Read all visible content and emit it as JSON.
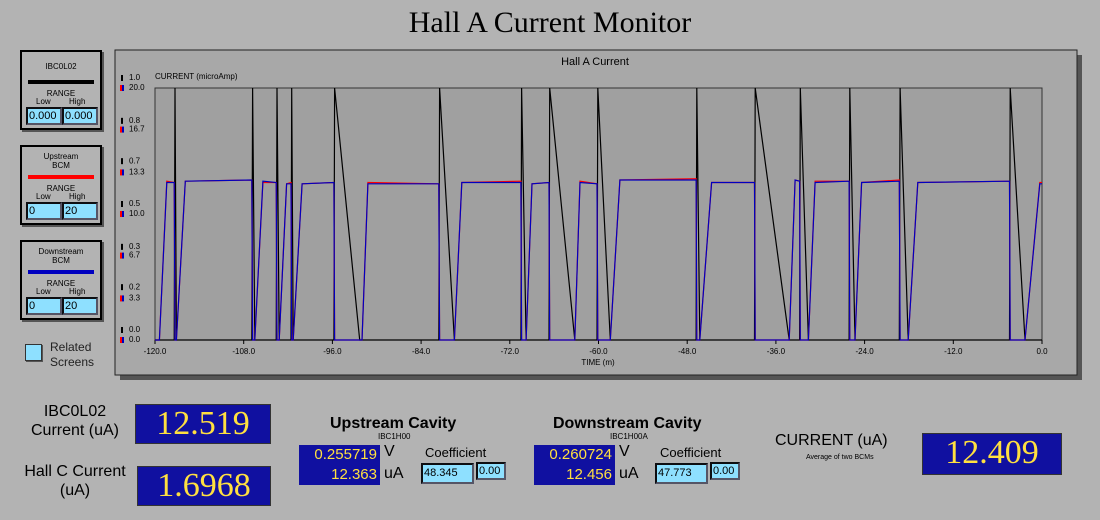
{
  "header": {
    "title": "Hall A Current Monitor"
  },
  "chart_data": {
    "type": "line",
    "title": "Hall A Current",
    "y_label": "CURRENT (microAmp)",
    "x_label": "TIME (m)",
    "x": [
      -120,
      -119.4,
      -118.4,
      -117.4,
      -117.3,
      -117.1,
      -115.9,
      -106.9,
      -106.8,
      -106.5,
      -105.4,
      -103.6,
      -103.5,
      -103.2,
      -102.2,
      -101.6,
      -101.5,
      -101.3,
      -100.1,
      -95.8,
      -95.7,
      -92.3,
      -92.0,
      -91.2,
      -81.6,
      -81.5,
      -79.5,
      -78.5,
      -70.5,
      -70.4,
      -69.8,
      -69.0,
      -66.7,
      -66.6,
      -63.2,
      -62.5,
      -60.2,
      -60.1,
      -58.4,
      -57.1,
      -46.8,
      -46.7,
      -46.3,
      -44.7,
      -38.9,
      -38.8,
      -34.2,
      -33.4,
      -32.8,
      -32.7,
      -31.6,
      -30.7,
      -26.1,
      -26.0,
      -25.3,
      -24.4,
      -19.3,
      -19.2,
      -18.1,
      -16.8,
      -4.4,
      -4.3,
      -2.3,
      -0.3,
      0
    ],
    "series": [
      {
        "name": "IBC0L02",
        "color": "#000000",
        "axis": "y2",
        "values": [
          0,
          0,
          0,
          0,
          1,
          0,
          0,
          0,
          1,
          0,
          0,
          0,
          1,
          0,
          0,
          0,
          1,
          0,
          0,
          0,
          1,
          0,
          0,
          0,
          0,
          1,
          0,
          0,
          0,
          1,
          0,
          0,
          0,
          1,
          0,
          0,
          0,
          1,
          0,
          0,
          0,
          1,
          0,
          0,
          0,
          1,
          0,
          0,
          0,
          1,
          0,
          0,
          0,
          1,
          0,
          0,
          0,
          1,
          0,
          0,
          0,
          1,
          0,
          0,
          0
        ]
      },
      {
        "name": "Upstream BCM",
        "color": "#ff0000",
        "values": [
          0,
          0,
          12.6,
          12.5,
          0,
          0,
          12.6,
          12.7,
          0,
          0,
          12.5,
          12.5,
          0,
          0,
          12.4,
          12.5,
          0,
          0,
          12.4,
          12.5,
          0,
          0,
          0,
          12.5,
          12.4,
          0,
          0,
          12.5,
          12.6,
          0,
          0,
          12.4,
          12.5,
          0,
          0,
          12.6,
          12.4,
          0,
          0,
          12.7,
          12.8,
          0,
          0,
          12.5,
          12.5,
          0,
          0,
          12.7,
          12.6,
          0,
          0,
          12.6,
          12.6,
          0,
          0,
          12.5,
          12.7,
          0,
          0,
          12.5,
          12.6,
          0,
          0,
          12.5,
          12.5
        ]
      },
      {
        "name": "Downstream BCM",
        "color": "#0000c0",
        "values": [
          0,
          0,
          12.5,
          12.5,
          0,
          0,
          12.6,
          12.7,
          0,
          0,
          12.6,
          12.5,
          0,
          0,
          12.4,
          12.4,
          0,
          0,
          12.4,
          12.5,
          0,
          0,
          0,
          12.4,
          12.4,
          0,
          0,
          12.5,
          12.5,
          0,
          0,
          12.4,
          12.5,
          0,
          0,
          12.5,
          12.4,
          0,
          0,
          12.7,
          12.7,
          0,
          0,
          12.5,
          12.5,
          0,
          0,
          12.7,
          12.6,
          0,
          0,
          12.5,
          12.6,
          0,
          0,
          12.5,
          12.6,
          0,
          0,
          12.5,
          12.6,
          0,
          0,
          12.4,
          12.4
        ]
      }
    ],
    "xlim": [
      -120,
      0
    ],
    "xticks": [
      {
        "value": -120,
        "label": "-120.0"
      },
      {
        "value": -108,
        "label": "-108.0"
      },
      {
        "value": -96,
        "label": "-96.0"
      },
      {
        "value": -84,
        "label": "-84.0"
      },
      {
        "value": -72,
        "label": "-72.0"
      },
      {
        "value": -60,
        "label": "-60.0"
      },
      {
        "value": -48,
        "label": "-48.0"
      },
      {
        "value": -36,
        "label": "-36.0"
      },
      {
        "value": -24,
        "label": "-24.0"
      },
      {
        "value": -12,
        "label": "-12.0"
      },
      {
        "value": 0,
        "label": "0.0"
      }
    ],
    "ylim": [
      0,
      20
    ],
    "yticks": [
      {
        "value": 0,
        "label": "0.0"
      },
      3.3,
      6.7,
      {
        "value": 10,
        "label": "10.0"
      },
      13.3,
      16.7,
      {
        "value": 20,
        "label": "20.0"
      }
    ],
    "y2lim": [
      0,
      1
    ],
    "y2ticks": [
      {
        "value": 0,
        "label": "0.0"
      },
      {
        "value": 0.17,
        "label": "0.2"
      },
      {
        "value": 0.33,
        "label": "0.3"
      },
      0.5,
      {
        "value": 0.67,
        "label": "0.7"
      },
      {
        "value": 0.83,
        "label": "0.8"
      },
      {
        "value": 1,
        "label": "1.0"
      }
    ],
    "grid": false
  },
  "range_labels": {
    "range": "RANGE",
    "low": "Low",
    "high": "High"
  },
  "panels": [
    {
      "low": "0.000",
      "high": "0.000"
    },
    {
      "low": "0",
      "high": "20"
    },
    {
      "low": "0",
      "high": "20"
    }
  ],
  "related_screens": "Related Screens",
  "units": {
    "volt": "V",
    "microamp": "uA"
  },
  "coefficient_label": "Coefficient",
  "readouts": {
    "ibc0l02": {
      "label": "IBC0L02 Current (uA)",
      "value": "12.519"
    },
    "hallc": {
      "label": "Hall C Current (uA)",
      "value": "1.6968"
    },
    "upstream": {
      "title": "Upstream Cavity",
      "id": "IBC1H00",
      "voltage": "0.255719",
      "current": "12.363",
      "coefficient": "48.345",
      "offset": "0.00"
    },
    "downstream": {
      "title": "Downstream Cavity",
      "id": "IBC1H00A",
      "voltage": "0.260724",
      "current": "12.456",
      "coefficient": "47.773",
      "offset": "0.00"
    },
    "average": {
      "label": "CURRENT (uA)",
      "note": "Average of two BCMs",
      "value": "12.409"
    }
  }
}
